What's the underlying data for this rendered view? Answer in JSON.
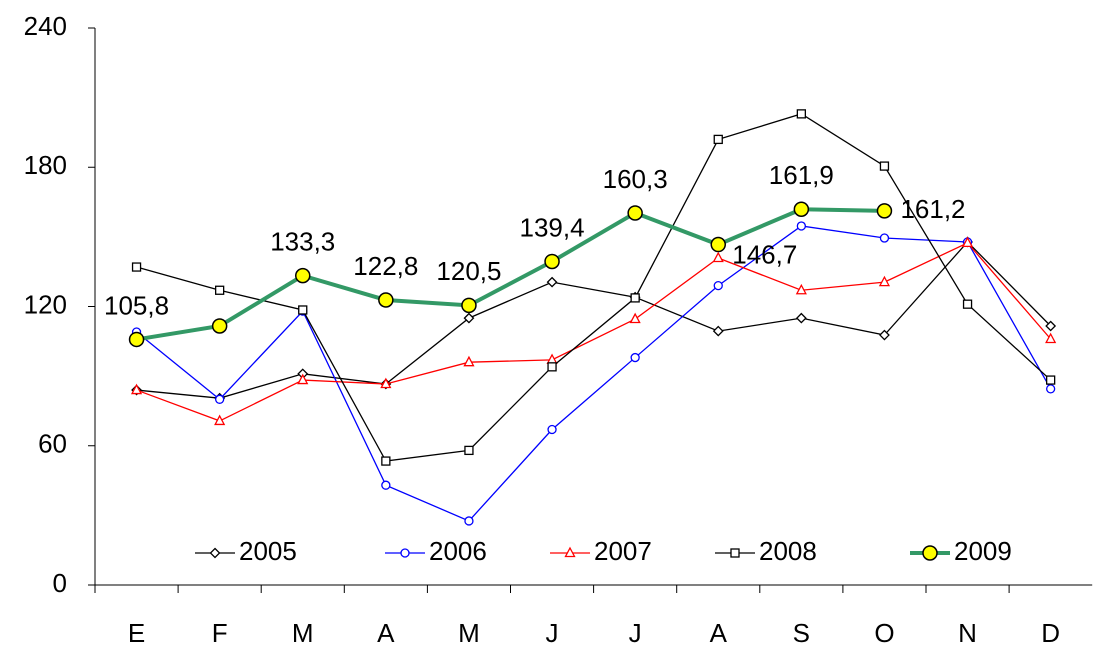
{
  "chart_data": {
    "type": "line",
    "categories": [
      "E",
      "F",
      "M",
      "A",
      "M",
      "J",
      "J",
      "A",
      "S",
      "O",
      "N",
      "D"
    ],
    "ylim": [
      0,
      240
    ],
    "yticks": [
      0,
      60,
      120,
      180,
      240
    ],
    "legend": "bottom",
    "series": [
      {
        "name": "2005",
        "color": "#000000",
        "marker": "diamond",
        "values": [
          84,
          80.5,
          91,
          86.6,
          115,
          130.5,
          124,
          109.4,
          115,
          107.7,
          147.8,
          111.6
        ]
      },
      {
        "name": "2006",
        "color": "#0000ff",
        "marker": "circle",
        "values": [
          109,
          80,
          118,
          43,
          27.6,
          67,
          98,
          129,
          154.7,
          149.5,
          147.8,
          84.5
        ]
      },
      {
        "name": "2007",
        "color": "#ff0000",
        "marker": "triangle",
        "values": [
          84,
          70.7,
          88.3,
          86.6,
          96,
          97,
          114.6,
          140.9,
          127,
          130.5,
          147.4,
          106
        ]
      },
      {
        "name": "2008",
        "color": "#000000",
        "marker": "square",
        "values": [
          137,
          127,
          118.5,
          53.4,
          58,
          94,
          123.7,
          192,
          203,
          180.5,
          121,
          88.3
        ]
      },
      {
        "name": "2009",
        "color": "#339966",
        "marker": "big-circle",
        "values": [
          105.8,
          111.6,
          133.3,
          122.8,
          120.5,
          139.4,
          160.3,
          146.7,
          161.9,
          161.2,
          null,
          null
        ],
        "value_labels": [
          "105,8",
          null,
          "133,3",
          "122,8",
          "120,5",
          "139,4",
          "160,3",
          "146,7",
          "161,9",
          "161,2",
          null,
          null
        ]
      }
    ]
  }
}
